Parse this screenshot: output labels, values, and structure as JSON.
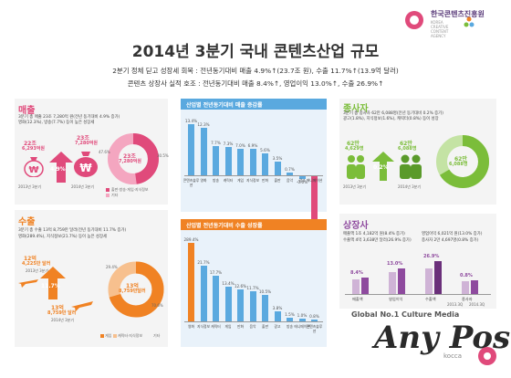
{
  "header": {
    "logo_ko": "한국콘텐츠진흥원",
    "logo_en": "KOREA CREATIVE CONTENT AGENCY",
    "title": "2014년 3분기 국내 콘텐츠산업 규모",
    "sub1": "2분기 정체 딛고 성장세 회복 : 전년동기대비 매출 4.9%↑(23.7조 원), 수출 11.7%↑(13.9억 달러)",
    "sub2": "콘텐츠 상장사 실적 호조 : 전년동기대비 매출 8.4%↑, 영업이익 13.0%↑, 수출 26.9%↑"
  },
  "sales": {
    "title": "매출",
    "note1": "3분기 총 매출 23조 7,280억 원(전년 동기대비 4.9% 증가)",
    "note2": "영화(12.3%), 방송(7.7%) 등이 높은 성장세",
    "prev_label": "22조",
    "prev_value": "6,293억원",
    "curr_label": "23조",
    "curr_value": "7,280억원",
    "growth": "4.9%",
    "prev_year": "2013년 3분기",
    "curr_year": "2014년 3분기",
    "donut_label": "23조",
    "donut_value": "7,280억원",
    "donut_pct1": "47.6%",
    "donut_pct2": "30.5%",
    "legend1": "출판·방송·게임·지식정보",
    "legend2": "기타"
  },
  "sales_growth": {
    "title": "산업별 전년동기대비 매출 증감률",
    "values": [
      "13.4%",
      "12.3%",
      "7.7%",
      "7.3%",
      "7.0%",
      "6.9%",
      "5.6%",
      "3.5%",
      "0.7%",
      "-0.6%",
      "-11.9%"
    ],
    "numbers": [
      13.4,
      12.3,
      7.7,
      7.3,
      7.0,
      6.9,
      5.6,
      3.5,
      0.7,
      -0.6,
      -11.9
    ],
    "categories": [
      "콘텐츠솔루션",
      "영화",
      "방송",
      "캐릭터",
      "게임",
      "지식정보",
      "만화",
      "출판",
      "음악",
      "광고",
      "애니메이션"
    ]
  },
  "export_growth": {
    "title": "산업별 전년동기대비 수출 성장률",
    "values": [
      "289.4%",
      "21.7%",
      "17.7%",
      "13.4%",
      "12.6%",
      "11.7%",
      "10.5%",
      "3.8%",
      "1.5%",
      "1.0%",
      "0.8%"
    ],
    "numbers": [
      289.4,
      21.7,
      17.7,
      13.4,
      12.6,
      11.7,
      10.5,
      3.8,
      1.5,
      1.0,
      0.8
    ],
    "categories": [
      "영화",
      "지식정보",
      "캐릭터",
      "게임",
      "만화",
      "음악",
      "출판",
      "광고",
      "방송",
      "애니메이션",
      "콘텐츠솔루션"
    ]
  },
  "exports": {
    "title": "수출",
    "note1": "3분기 총 수출 13억 8,759만 달러(전년 동기대비 11.7% 증가)",
    "note2": "영화(289.4%), 지식정보(21.7%) 등이 높은 성장세",
    "prev_label": "12억",
    "prev_value": "4,225만 달러",
    "prev_year": "2013년 3분기",
    "growth": "11.7%",
    "curr_label": "13억",
    "curr_value": "8,759만 달러",
    "curr_year": "2014년 3분기",
    "donut_label": "13억",
    "donut_value": "8,759만달러",
    "donut_pct1": "29.4%",
    "donut_pct2": "70.6%",
    "legend1": "게임",
    "legend2": "캐릭터·지식정보",
    "legend3": "기타"
  },
  "employees": {
    "title": "종사자",
    "note1": "3분기 총 종사자 62만 6,088명(전년 동기대비 0.2% 증가)",
    "note2": "광고(1.8%), 지식정보(1.6%), 캐릭터(0.8%) 등이 성장",
    "prev_label": "62만",
    "prev_value": "4,629명",
    "curr_label": "62만",
    "curr_value": "6,088명",
    "growth": "0.2%",
    "prev_year": "2013년 3분기",
    "curr_year": "2014년 3분기",
    "donut_label": "62만",
    "donut_value": "6,088명"
  },
  "listed": {
    "title": "상장사",
    "note1": "매출액 1조 4,182억 원(8.4% 증가)",
    "note2": "영업이익 6,021억 원(13.0% 증가)",
    "note3": "수출액 4억 3,638만 달러(26.9% 증가)",
    "note4": "종사자 2만 4,697명(0.8% 증가)",
    "g1": "8.4%",
    "g2": "13.0%",
    "g3": "26.9%",
    "g4": "0.8%",
    "labels": [
      "매출액",
      "영업이익",
      "수출액",
      "종사자"
    ],
    "year_a": "2013.3Q",
    "year_b": "2014.3Q"
  },
  "watermark": {
    "line1": "Global No.1 Culture Media",
    "brand": "Any Post",
    "sub": "kocca"
  },
  "colors": {
    "pink": "#e04a7b",
    "blue": "#5aa9df",
    "orange": "#f08223",
    "green": "#7bbd3a",
    "purple": "#8e4a9e"
  }
}
